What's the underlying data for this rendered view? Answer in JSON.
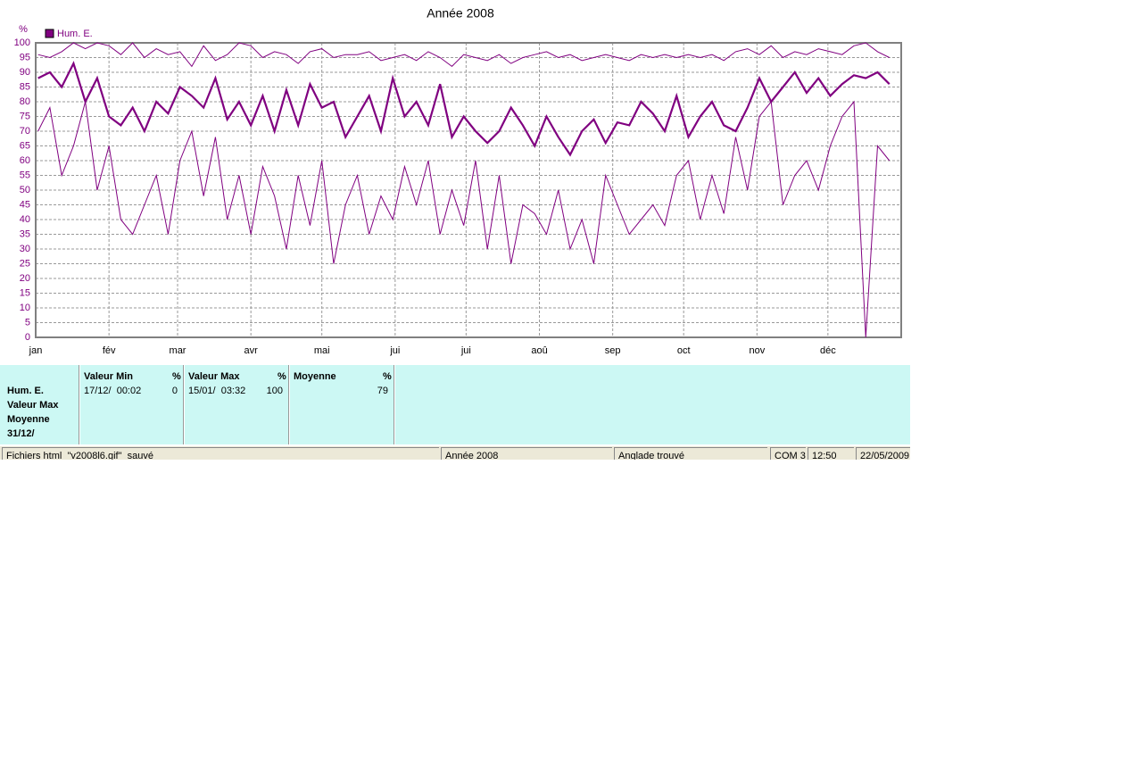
{
  "chart_data": {
    "type": "line",
    "title": "Année 2008",
    "y_unit": "%",
    "x": [
      2,
      7,
      12,
      17,
      22,
      27,
      32,
      37,
      42,
      47,
      52,
      57,
      62,
      67,
      72,
      77,
      82,
      87,
      92,
      97,
      102,
      107,
      112,
      117,
      122,
      127,
      132,
      137,
      142,
      147,
      152,
      157,
      162,
      167,
      172,
      177,
      182,
      187,
      192,
      197,
      202,
      207,
      212,
      217,
      222,
      227,
      232,
      237,
      242,
      247,
      252,
      257,
      262,
      267,
      272,
      277,
      282,
      287,
      292,
      297,
      302,
      307,
      312,
      317,
      322,
      327,
      332,
      337,
      342,
      347,
      352,
      357,
      362
    ],
    "xlim": [
      1,
      367
    ],
    "xticks": [
      {
        "value": 1,
        "label": "jan"
      },
      {
        "value": 32,
        "label": "fév"
      },
      {
        "value": 61,
        "label": "mar"
      },
      {
        "value": 92,
        "label": "avr"
      },
      {
        "value": 122,
        "label": "mai"
      },
      {
        "value": 153,
        "label": "jui"
      },
      {
        "value": 183,
        "label": "jui"
      },
      {
        "value": 214,
        "label": "aoû"
      },
      {
        "value": 245,
        "label": "sep"
      },
      {
        "value": 275,
        "label": "oct"
      },
      {
        "value": 306,
        "label": "nov"
      },
      {
        "value": 336,
        "label": "déc"
      }
    ],
    "ylim": [
      0,
      100
    ],
    "yticks": [
      0,
      5,
      10,
      15,
      20,
      25,
      30,
      35,
      40,
      45,
      50,
      55,
      60,
      65,
      70,
      75,
      80,
      85,
      90,
      95,
      100
    ],
    "grid": true,
    "series": [
      {
        "name": "Hum. E.",
        "color": "#800080",
        "values": [
          88,
          90,
          85,
          93,
          80,
          88,
          75,
          72,
          78,
          70,
          80,
          76,
          85,
          82,
          78,
          88,
          74,
          80,
          72,
          82,
          70,
          84,
          72,
          86,
          78,
          80,
          68,
          75,
          82,
          70,
          88,
          75,
          80,
          72,
          86,
          68,
          75,
          70,
          66,
          70,
          78,
          72,
          65,
          75,
          68,
          62,
          70,
          74,
          66,
          73,
          72,
          80,
          76,
          70,
          82,
          68,
          75,
          80,
          72,
          70,
          78,
          88,
          80,
          85,
          90,
          83,
          88,
          82,
          86,
          89,
          88,
          90,
          86
        ]
      },
      {
        "color": "#800080",
        "values": [
          96,
          95,
          97,
          100,
          98,
          100,
          99,
          96,
          100,
          95,
          98,
          96,
          97,
          92,
          99,
          94,
          96,
          100,
          99,
          95,
          97,
          96,
          93,
          97,
          98,
          95,
          96,
          96,
          97,
          94,
          95,
          96,
          94,
          97,
          95,
          92,
          96,
          95,
          94,
          96,
          93,
          95,
          96,
          97,
          95,
          96,
          94,
          95,
          96,
          95,
          94,
          96,
          95,
          96,
          95,
          96,
          95,
          96,
          94,
          97,
          98,
          96,
          99,
          95,
          97,
          96,
          98,
          97,
          96,
          99,
          100,
          97,
          95
        ]
      },
      {
        "color": "#800080",
        "values": [
          70,
          78,
          55,
          65,
          80,
          50,
          65,
          40,
          35,
          45,
          55,
          35,
          60,
          70,
          48,
          68,
          40,
          55,
          35,
          58,
          48,
          30,
          55,
          38,
          60,
          25,
          45,
          55,
          35,
          48,
          40,
          58,
          45,
          60,
          35,
          50,
          38,
          60,
          30,
          55,
          25,
          45,
          42,
          35,
          50,
          30,
          40,
          25,
          55,
          45,
          35,
          40,
          45,
          38,
          55,
          60,
          40,
          55,
          42,
          68,
          50,
          75,
          80,
          45,
          55,
          60,
          50,
          65,
          75,
          80,
          0,
          65,
          60
        ]
      }
    ]
  },
  "panel": {
    "row_labels": [
      "Hum. E.",
      "Valeur Max",
      "Moyenne",
      "31/12/"
    ],
    "columns": [
      {
        "header": "Valeur Min",
        "unit": "%",
        "date": "17/12/  00:02",
        "value": "0"
      },
      {
        "header": "Valeur Max",
        "unit": "%",
        "date": "15/01/  03:32",
        "value": "100"
      },
      {
        "header": "Moyenne",
        "unit": "%",
        "value": "79"
      }
    ]
  },
  "status_bar": [
    "Fichiers html  \"v2008l6.gif\"  sauvé",
    "Année 2008",
    "Anglade trouvé",
    "COM 3",
    "12:50",
    "22/05/2009"
  ]
}
